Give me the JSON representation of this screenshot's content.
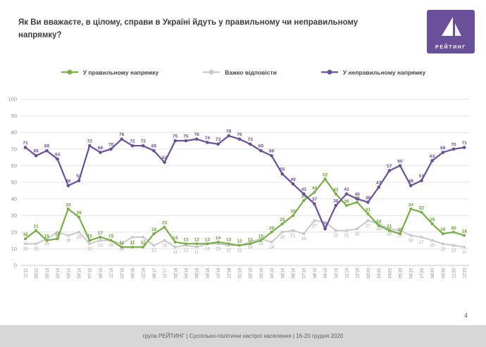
{
  "slide": {
    "title": "Як Ви вважаєте, в цілому, справи в Україні йдуть у правильному чи неправильному напрямку?",
    "page_number": "4",
    "footer": "група РЕЙТИНГ | Суспільно-політичні настрої населення | 16-20 грудня 2020",
    "logo_text": "РЕЙТИНГ"
  },
  "legend": [
    {
      "label": "У правильному напрямку",
      "color": "#76b043"
    },
    {
      "label": "Важко відповісти",
      "color": "#c9c9c9"
    },
    {
      "label": "У неправильному напрямку",
      "color": "#6a4f9b"
    }
  ],
  "chart_data": {
    "type": "line",
    "title": "Як Ви вважаєте, в цілому, справи в Україні йдуть у правильному чи неправильному напрямку?",
    "xlabel": "",
    "ylabel": "",
    "ylim": [
      0,
      100
    ],
    "yticks": [
      0,
      10,
      20,
      30,
      40,
      50,
      60,
      70,
      80,
      90,
      100
    ],
    "grid": true,
    "legend_position": "top",
    "x": [
      "11'11",
      "05'12",
      "05'13",
      "02'14",
      "04'14",
      "09'14",
      "07'15",
      "09'15",
      "11'15",
      "02'16",
      "05'16",
      "11'16",
      "06'17",
      "11'17",
      "03'18",
      "04'18",
      "06'18",
      "09'18",
      "10'18",
      "12'18",
      "01'19",
      "02'19",
      "03'19",
      "04'19",
      "05'19",
      "06'19",
      "07'19",
      "08'19",
      "09'19",
      "10'19",
      "11'19",
      "12'19",
      "02'20",
      "03'20",
      "04'20",
      "05'20",
      "06'20",
      "07'20",
      "08'20",
      "09'20",
      "11'20",
      "12'20"
    ],
    "series": [
      {
        "name": "У правильному напрямку",
        "color": "#76b043",
        "label_color": "#67a035",
        "values": [
          16,
          21,
          15,
          16,
          34,
          29,
          15,
          17,
          15,
          11,
          11,
          11,
          19,
          23,
          14,
          13,
          13,
          13,
          14,
          13,
          12,
          13,
          15,
          20,
          25,
          30,
          39,
          44,
          52,
          43,
          36,
          38,
          31,
          24,
          21,
          19,
          34,
          32,
          25,
          19,
          20,
          18
        ]
      },
      {
        "name": "Важко відповісти",
        "color": "#c9c9c9",
        "label_color": "#a8a8a8",
        "values": [
          13,
          13,
          16,
          20,
          18,
          20,
          13,
          15,
          15,
          13,
          17,
          17,
          12,
          15,
          11,
          12,
          11,
          13,
          13,
          12,
          12,
          14,
          16,
          14,
          20,
          21,
          19,
          27,
          26,
          21,
          21,
          22,
          27,
          25,
          22,
          21,
          18,
          17,
          15,
          13,
          12,
          11
        ]
      },
      {
        "name": "У неправильному напрямку",
        "color": "#6a4f9b",
        "label_color": "#6a4f9b",
        "values": [
          71,
          66,
          69,
          64,
          48,
          51,
          72,
          68,
          70,
          76,
          72,
          72,
          69,
          62,
          75,
          75,
          76,
          74,
          73,
          78,
          76,
          73,
          69,
          66,
          55,
          49,
          43,
          37,
          22,
          36,
          43,
          40,
          38,
          47,
          57,
          60,
          48,
          51,
          63,
          68,
          70,
          71
        ]
      }
    ]
  }
}
